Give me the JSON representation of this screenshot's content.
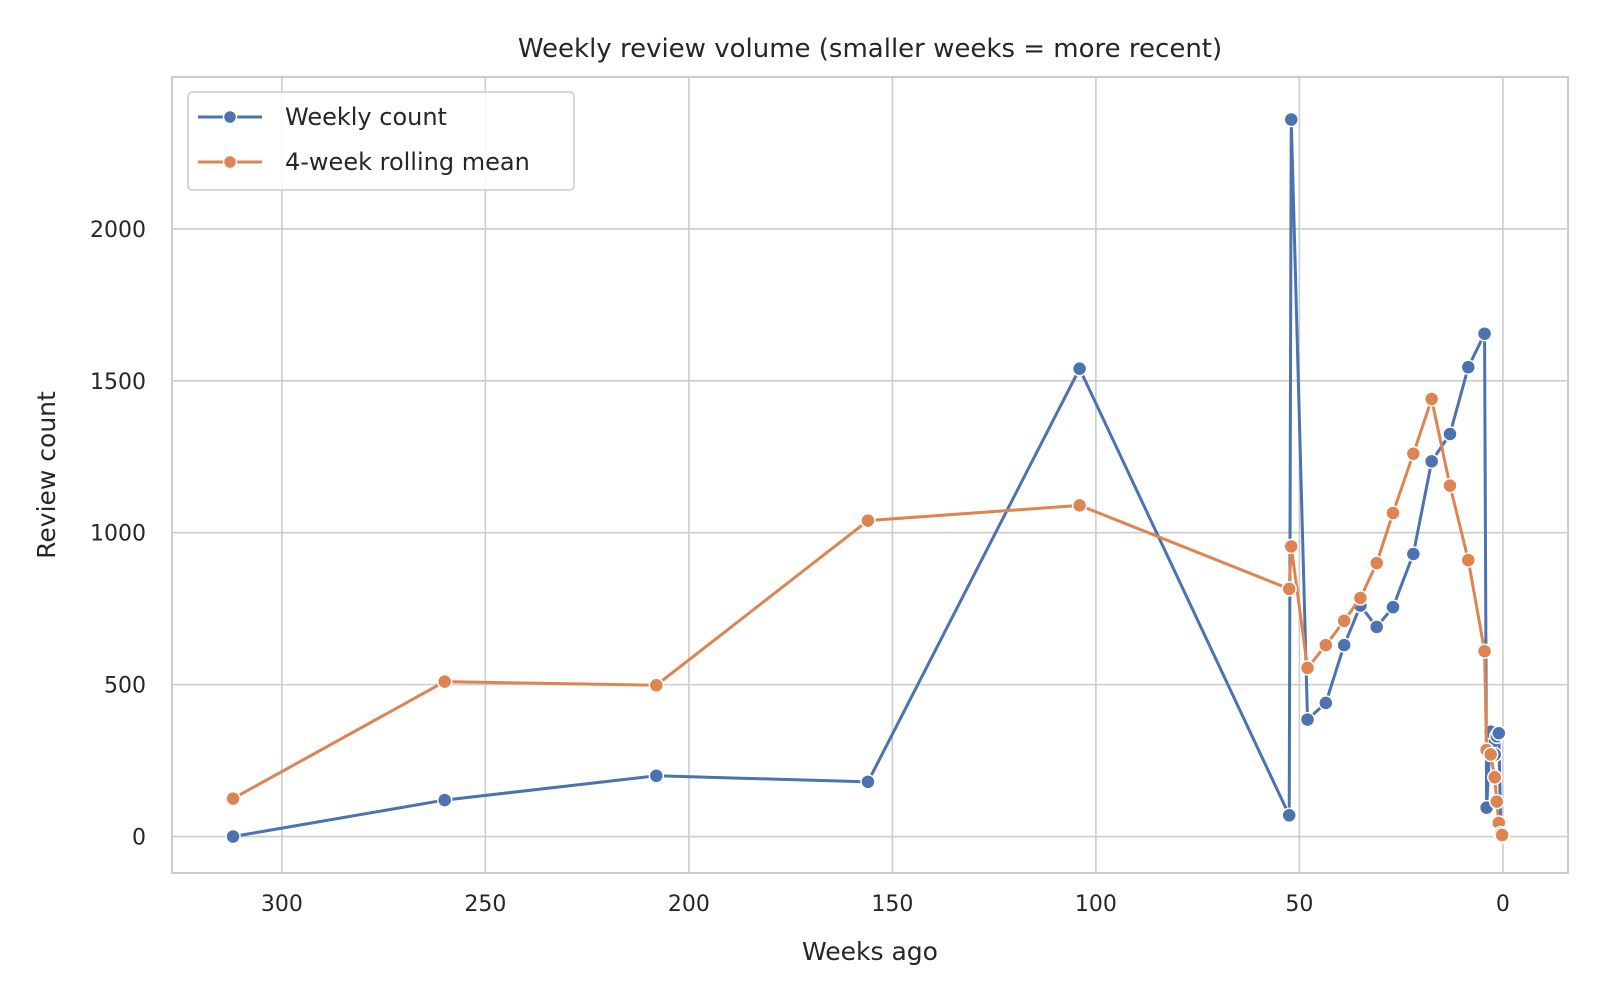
{
  "chart_data": {
    "type": "line",
    "title": "Weekly review volume (smaller weeks = more recent)",
    "xlabel": "Weeks ago",
    "ylabel": "Review count",
    "xlim": [
      327,
      -16
    ],
    "ylim": [
      -120,
      2500
    ],
    "x_inverted": true,
    "xticks": [
      300,
      250,
      200,
      150,
      100,
      50,
      0
    ],
    "yticks": [
      0,
      500,
      1000,
      1500,
      2000
    ],
    "grid": true,
    "legend_position": "top-left",
    "series": [
      {
        "name": "Weekly count",
        "color": "#4c72b0",
        "points": [
          [
            312,
            0
          ],
          [
            260,
            120
          ],
          [
            208,
            200
          ],
          [
            156,
            180
          ],
          [
            104,
            1540
          ],
          [
            52.5,
            70
          ],
          [
            52,
            2360
          ],
          [
            48,
            385
          ],
          [
            43.5,
            440
          ],
          [
            39,
            630
          ],
          [
            35,
            760
          ],
          [
            31,
            690
          ],
          [
            27,
            755
          ],
          [
            22,
            930
          ],
          [
            17.5,
            1235
          ],
          [
            13,
            1325
          ],
          [
            8.5,
            1545
          ],
          [
            4.5,
            1655
          ],
          [
            4,
            95
          ],
          [
            3,
            345
          ],
          [
            2,
            270
          ],
          [
            1.5,
            330
          ],
          [
            1,
            340
          ],
          [
            0.5,
            5
          ],
          [
            0.2,
            2
          ]
        ]
      },
      {
        "name": "4-week rolling mean",
        "color": "#dd8452",
        "points": [
          [
            312,
            125
          ],
          [
            260,
            510
          ],
          [
            208,
            498
          ],
          [
            156,
            1040
          ],
          [
            104,
            1090
          ],
          [
            52.5,
            815
          ],
          [
            52,
            955
          ],
          [
            48,
            555
          ],
          [
            43.5,
            630
          ],
          [
            39,
            710
          ],
          [
            35,
            785
          ],
          [
            31,
            900
          ],
          [
            27,
            1065
          ],
          [
            22,
            1260
          ],
          [
            17.5,
            1440
          ],
          [
            13,
            1155
          ],
          [
            8.5,
            910
          ],
          [
            4.5,
            610
          ],
          [
            4,
            285
          ],
          [
            3,
            270
          ],
          [
            2,
            195
          ],
          [
            1.5,
            115
          ],
          [
            1,
            45
          ],
          [
            0.5,
            10
          ],
          [
            0.2,
            5
          ]
        ]
      }
    ]
  }
}
